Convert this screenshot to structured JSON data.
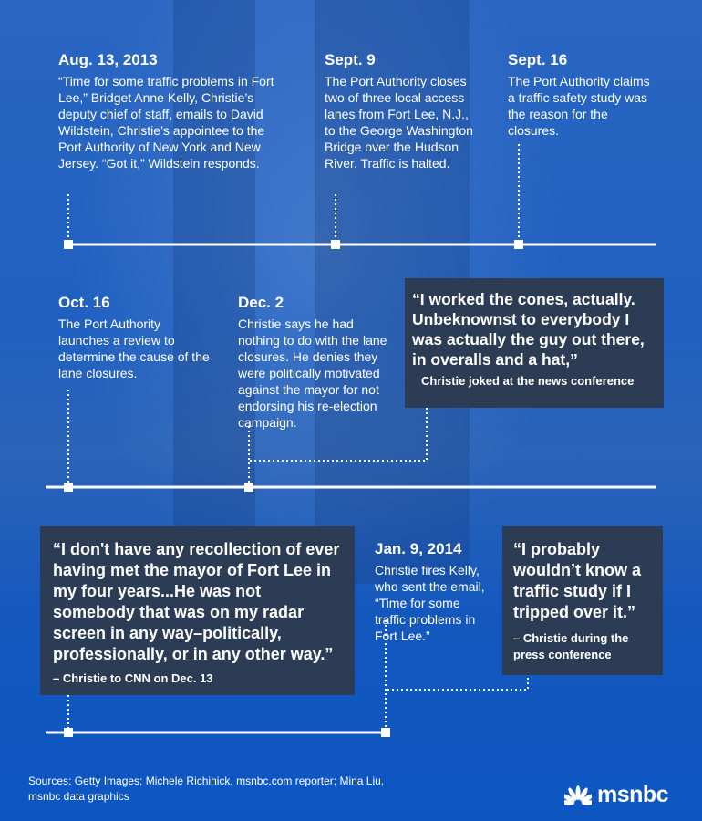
{
  "events": [
    {
      "date": "Aug. 13, 2013",
      "text": "“Time for some traffic problems in Fort Lee,” Bridget Anne Kelly, Christie’s deputy chief of staff, emails to David Wildstein, Christie’s appointee to the Port Authority of New York and New Jersey. “Got it,” Wildstein responds."
    },
    {
      "date": "Sept. 9",
      "text": "The Port Authority closes two of three local access lanes from Fort Lee, N.J., to the George Washington Bridge over the Hudson River. Traffic is halted."
    },
    {
      "date": "Sept. 16",
      "text": "The Port Authority claims a traffic safety study was the reason for the closures."
    },
    {
      "date": "Oct. 16",
      "text": "The Port Authority launches a review to determine the cause of the lane closures."
    },
    {
      "date": "Dec. 2",
      "text": "Christie says he had nothing to do with the lane closures. He denies they were politically motivated against the mayor for not endorsing his re-election campaign."
    },
    {
      "date": "Jan. 9, 2014",
      "text": "Christie fires Kelly, who sent the email, “Time for some traffic problems in Fort Lee.”"
    }
  ],
  "quotes": [
    {
      "quote": "“I worked the cones, actually. Unbeknownst to everybody I was actually the guy out there, in overalls and a hat,”",
      "attribution": "Christie joked at the news conference"
    },
    {
      "quote": "“I don't have any recollection of ever having met the mayor of Fort Lee in my four years...He was not somebody that was on my radar screen in any way–politically, professionally, or in any other way.”",
      "attribution": "– Christie to CNN on Dec. 13"
    },
    {
      "quote": "“I probably wouldn’t know a traffic study if I tripped over it.”",
      "attribution": "– Christie during the press conference"
    }
  ],
  "sources": "Sources: Getty Images; Michele Richinick, msnbc.com reporter; Mina Liu, msnbc data graphics",
  "logo": "msnbc",
  "colors": {
    "background": "#1f60c0",
    "quote_box": "#2b3c54",
    "line": "#ffffff"
  }
}
